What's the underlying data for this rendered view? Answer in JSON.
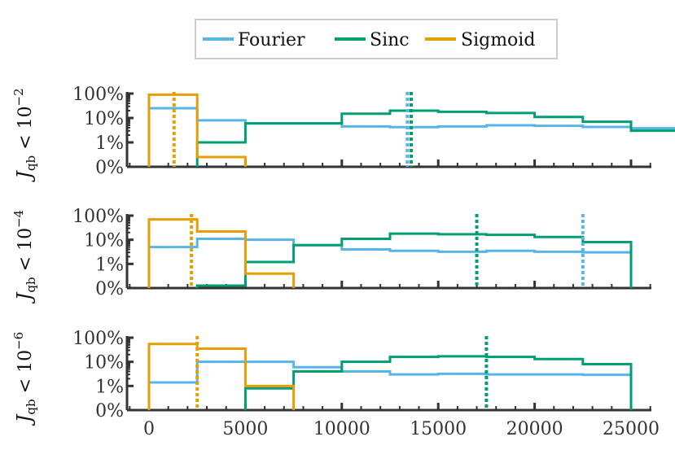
{
  "chart_data": {
    "type": "step-histogram",
    "legend": [
      {
        "name": "Fourier",
        "color": "#56b4e9"
      },
      {
        "name": "Sinc",
        "color": "#009e73"
      },
      {
        "name": "Sigmoid",
        "color": "#e69f00"
      }
    ],
    "x_ticks": [
      0,
      5000,
      10000,
      15000,
      20000,
      25000
    ],
    "x_tick_labels": [
      "0",
      "5000",
      "10000",
      "15000",
      "20000",
      "25000"
    ],
    "xlim": [
      -1500,
      26500
    ],
    "bin_width": 2500,
    "y_ticks": [
      "0%",
      "1%",
      "10%",
      "100%"
    ],
    "y_scale": "symlog-percent",
    "panels": [
      {
        "ylabel_main": "J",
        "ylabel_sub": "qb",
        "ylabel_rest": " < 10",
        "ylabel_exp": "−2",
        "series": [
          {
            "name": "Fourier",
            "start": 0,
            "values": [
              25,
              8,
              6,
              6,
              4.5,
              4.2,
              4.5,
              5,
              4.8,
              4.3,
              3.8
            ]
          },
          {
            "name": "Sinc",
            "start": 2500,
            "values": [
              1,
              6,
              6,
              15,
              20,
              18,
              16,
              11,
              7,
              3
            ]
          },
          {
            "name": "Sigmoid",
            "start": 0,
            "values": [
              90,
              0.4
            ]
          }
        ],
        "medians": [
          {
            "name": "Sigmoid",
            "x": 1300
          },
          {
            "name": "Fourier",
            "x": 13400
          },
          {
            "name": "Sinc",
            "x": 13600
          }
        ]
      },
      {
        "ylabel_main": "J",
        "ylabel_sub": "qb",
        "ylabel_rest": " < 10",
        "ylabel_exp": "−4",
        "series": [
          {
            "name": "Fourier",
            "start": 0,
            "values": [
              5,
              11,
              10,
              6,
              4,
              3.5,
              3.2,
              3.5,
              3.2,
              3
            ]
          },
          {
            "name": "Sinc",
            "start": 2500,
            "values": [
              0.1,
              1.2,
              6,
              11,
              18,
              17,
              16,
              13,
              8
            ]
          },
          {
            "name": "Sigmoid",
            "start": 0,
            "values": [
              70,
              22,
              0.6
            ]
          }
        ],
        "medians": [
          {
            "name": "Sigmoid",
            "x": 2200
          },
          {
            "name": "Sinc",
            "x": 17000
          },
          {
            "name": "Fourier",
            "x": 22500
          }
        ]
      },
      {
        "ylabel_main": "J",
        "ylabel_sub": "qb",
        "ylabel_rest": " < 10",
        "ylabel_exp": "−6",
        "series": [
          {
            "name": "Fourier",
            "start": 0,
            "values": [
              1.4,
              10,
              10,
              6,
              4,
              3,
              3.2,
              3,
              3,
              2.9
            ]
          },
          {
            "name": "Sinc",
            "start": 5000,
            "values": [
              0.9,
              4,
              10,
              16,
              17,
              16,
              13,
              8
            ]
          },
          {
            "name": "Sigmoid",
            "start": 0,
            "values": [
              55,
              35,
              1
            ]
          }
        ],
        "medians": [
          {
            "name": "Sigmoid",
            "x": 2500
          },
          {
            "name": "Sinc",
            "x": 17500
          }
        ]
      }
    ]
  }
}
